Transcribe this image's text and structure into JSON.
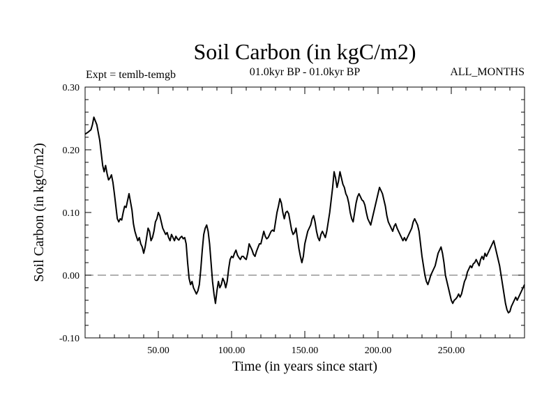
{
  "chart_data": {
    "type": "line",
    "title": "Soil Carbon (in kgC/m2)",
    "subtitle_left": "Expt = temlb-temgb",
    "subtitle_center": "01.0kyr BP - 01.0kyr BP",
    "subtitle_right": "ALL_MONTHS",
    "xlabel": "Time (in years since start)",
    "ylabel": "Soil Carbon (in kgC/m2)",
    "xlim": [
      0,
      300
    ],
    "ylim": [
      -0.1,
      0.3
    ],
    "x_ticks": [
      50,
      100,
      150,
      200,
      250
    ],
    "x_tick_labels": [
      "50.00",
      "100.00",
      "150.00",
      "200.00",
      "250.00"
    ],
    "y_ticks": [
      -0.1,
      0.0,
      0.1,
      0.2,
      0.3
    ],
    "y_tick_labels": [
      "-0.10",
      "0.00",
      "0.10",
      "0.20",
      "0.30"
    ],
    "reference_line": {
      "y": 0.0,
      "style": "dashed",
      "color": "#808080"
    },
    "series": [
      {
        "name": "Soil Carbon",
        "color": "#000000",
        "x": [
          0,
          2,
          4,
          5,
          6,
          8,
          10,
          11,
          12,
          13,
          14,
          15,
          16,
          17,
          18,
          19,
          20,
          21,
          22,
          23,
          24,
          25,
          26,
          27,
          28,
          30,
          32,
          33,
          34,
          35,
          36,
          37,
          38,
          39,
          40,
          41,
          42,
          43,
          44,
          45,
          46,
          47,
          48,
          49,
          50,
          51,
          52,
          53,
          54,
          55,
          56,
          57,
          58,
          59,
          60,
          61,
          62,
          63,
          64,
          65,
          66,
          67,
          68,
          69,
          70,
          71,
          72,
          73,
          74,
          75,
          76,
          77,
          78,
          79,
          80,
          81,
          82,
          83,
          84,
          85,
          86,
          87,
          88,
          89,
          90,
          91,
          92,
          93,
          94,
          95,
          96,
          97,
          98,
          99,
          100,
          101,
          102,
          103,
          104,
          105,
          106,
          107,
          108,
          109,
          110,
          111,
          112,
          113,
          114,
          115,
          116,
          117,
          118,
          119,
          120,
          121,
          122,
          123,
          124,
          125,
          126,
          127,
          128,
          129,
          130,
          131,
          132,
          133,
          134,
          135,
          136,
          137,
          138,
          139,
          140,
          141,
          142,
          143,
          144,
          145,
          146,
          147,
          148,
          149,
          150,
          151,
          152,
          153,
          154,
          155,
          156,
          157,
          158,
          159,
          160,
          161,
          162,
          163,
          164,
          165,
          166,
          167,
          168,
          169,
          170,
          171,
          172,
          173,
          174,
          175,
          176,
          177,
          178,
          179,
          180,
          181,
          182,
          183,
          184,
          185,
          186,
          187,
          188,
          189,
          190,
          191,
          192,
          193,
          194,
          195,
          196,
          197,
          198,
          199,
          200,
          201,
          202,
          203,
          204,
          205,
          206,
          207,
          208,
          209,
          210,
          211,
          212,
          213,
          214,
          215,
          216,
          217,
          218,
          219,
          220,
          221,
          222,
          223,
          224,
          225,
          226,
          227,
          228,
          229,
          230,
          231,
          232,
          233,
          234,
          235,
          236,
          237,
          238,
          239,
          240,
          241,
          242,
          243,
          244,
          245,
          246,
          247,
          248,
          249,
          250,
          251,
          252,
          253,
          254,
          255,
          256,
          257,
          258,
          259,
          260,
          261,
          262,
          263,
          264,
          265,
          266,
          267,
          268,
          269,
          270,
          271,
          272,
          273,
          274,
          275,
          276,
          277,
          278,
          279,
          280,
          281,
          282,
          283,
          284,
          285,
          286,
          287,
          288,
          289,
          290,
          291,
          292,
          293,
          294,
          295,
          296,
          297,
          298,
          299,
          300
        ],
        "values": [
          0.225,
          0.228,
          0.232,
          0.24,
          0.252,
          0.24,
          0.215,
          0.195,
          0.175,
          0.165,
          0.175,
          0.162,
          0.152,
          0.155,
          0.16,
          0.148,
          0.13,
          0.11,
          0.09,
          0.085,
          0.09,
          0.088,
          0.1,
          0.11,
          0.108,
          0.13,
          0.104,
          0.082,
          0.07,
          0.062,
          0.055,
          0.06,
          0.05,
          0.045,
          0.035,
          0.045,
          0.06,
          0.075,
          0.07,
          0.055,
          0.06,
          0.07,
          0.085,
          0.09,
          0.1,
          0.095,
          0.085,
          0.075,
          0.07,
          0.065,
          0.068,
          0.06,
          0.055,
          0.065,
          0.06,
          0.055,
          0.062,
          0.058,
          0.056,
          0.06,
          0.062,
          0.058,
          0.06,
          0.05,
          0.02,
          -0.005,
          -0.015,
          -0.01,
          -0.02,
          -0.025,
          -0.03,
          -0.025,
          -0.015,
          0.01,
          0.04,
          0.065,
          0.075,
          0.08,
          0.07,
          0.05,
          0.02,
          -0.01,
          -0.03,
          -0.045,
          -0.025,
          -0.01,
          -0.02,
          -0.015,
          -0.005,
          -0.01,
          -0.02,
          -0.01,
          0.01,
          0.025,
          0.03,
          0.028,
          0.035,
          0.04,
          0.032,
          0.028,
          0.025,
          0.03,
          0.03,
          0.027,
          0.025,
          0.035,
          0.05,
          0.045,
          0.04,
          0.033,
          0.03,
          0.038,
          0.044,
          0.05,
          0.05,
          0.06,
          0.07,
          0.062,
          0.058,
          0.06,
          0.065,
          0.07,
          0.072,
          0.07,
          0.085,
          0.1,
          0.11,
          0.122,
          0.115,
          0.1,
          0.09,
          0.1,
          0.102,
          0.098,
          0.085,
          0.072,
          0.065,
          0.068,
          0.075,
          0.058,
          0.042,
          0.03,
          0.02,
          0.03,
          0.05,
          0.06,
          0.07,
          0.075,
          0.08,
          0.09,
          0.095,
          0.085,
          0.07,
          0.06,
          0.055,
          0.065,
          0.07,
          0.065,
          0.06,
          0.07,
          0.085,
          0.1,
          0.12,
          0.14,
          0.165,
          0.155,
          0.14,
          0.15,
          0.165,
          0.155,
          0.145,
          0.14,
          0.13,
          0.125,
          0.115,
          0.1,
          0.09,
          0.085,
          0.1,
          0.115,
          0.125,
          0.13,
          0.125,
          0.12,
          0.118,
          0.112,
          0.1,
          0.09,
          0.085,
          0.08,
          0.09,
          0.1,
          0.11,
          0.12,
          0.13,
          0.14,
          0.135,
          0.13,
          0.12,
          0.11,
          0.095,
          0.085,
          0.08,
          0.075,
          0.07,
          0.078,
          0.082,
          0.075,
          0.07,
          0.065,
          0.06,
          0.055,
          0.06,
          0.055,
          0.06,
          0.065,
          0.07,
          0.075,
          0.085,
          0.09,
          0.085,
          0.08,
          0.07,
          0.05,
          0.03,
          0.015,
          0.0,
          -0.01,
          -0.015,
          -0.008,
          0.0,
          0.005,
          0.01,
          0.015,
          0.025,
          0.035,
          0.04,
          0.045,
          0.035,
          0.02,
          0.0,
          -0.01,
          -0.02,
          -0.03,
          -0.04,
          -0.045,
          -0.04,
          -0.038,
          -0.035,
          -0.03,
          -0.035,
          -0.03,
          -0.02,
          -0.01,
          -0.005,
          0.005,
          0.01,
          0.015,
          0.012,
          0.018,
          0.02,
          0.025,
          0.02,
          0.015,
          0.025,
          0.03,
          0.025,
          0.035,
          0.03,
          0.035,
          0.04,
          0.045,
          0.05,
          0.055,
          0.045,
          0.035,
          0.025,
          0.015,
          0.0,
          -0.015,
          -0.03,
          -0.045,
          -0.055,
          -0.06,
          -0.058,
          -0.05,
          -0.045,
          -0.04,
          -0.035,
          -0.04,
          -0.035,
          -0.03,
          -0.025,
          -0.02,
          -0.015
        ]
      }
    ]
  }
}
